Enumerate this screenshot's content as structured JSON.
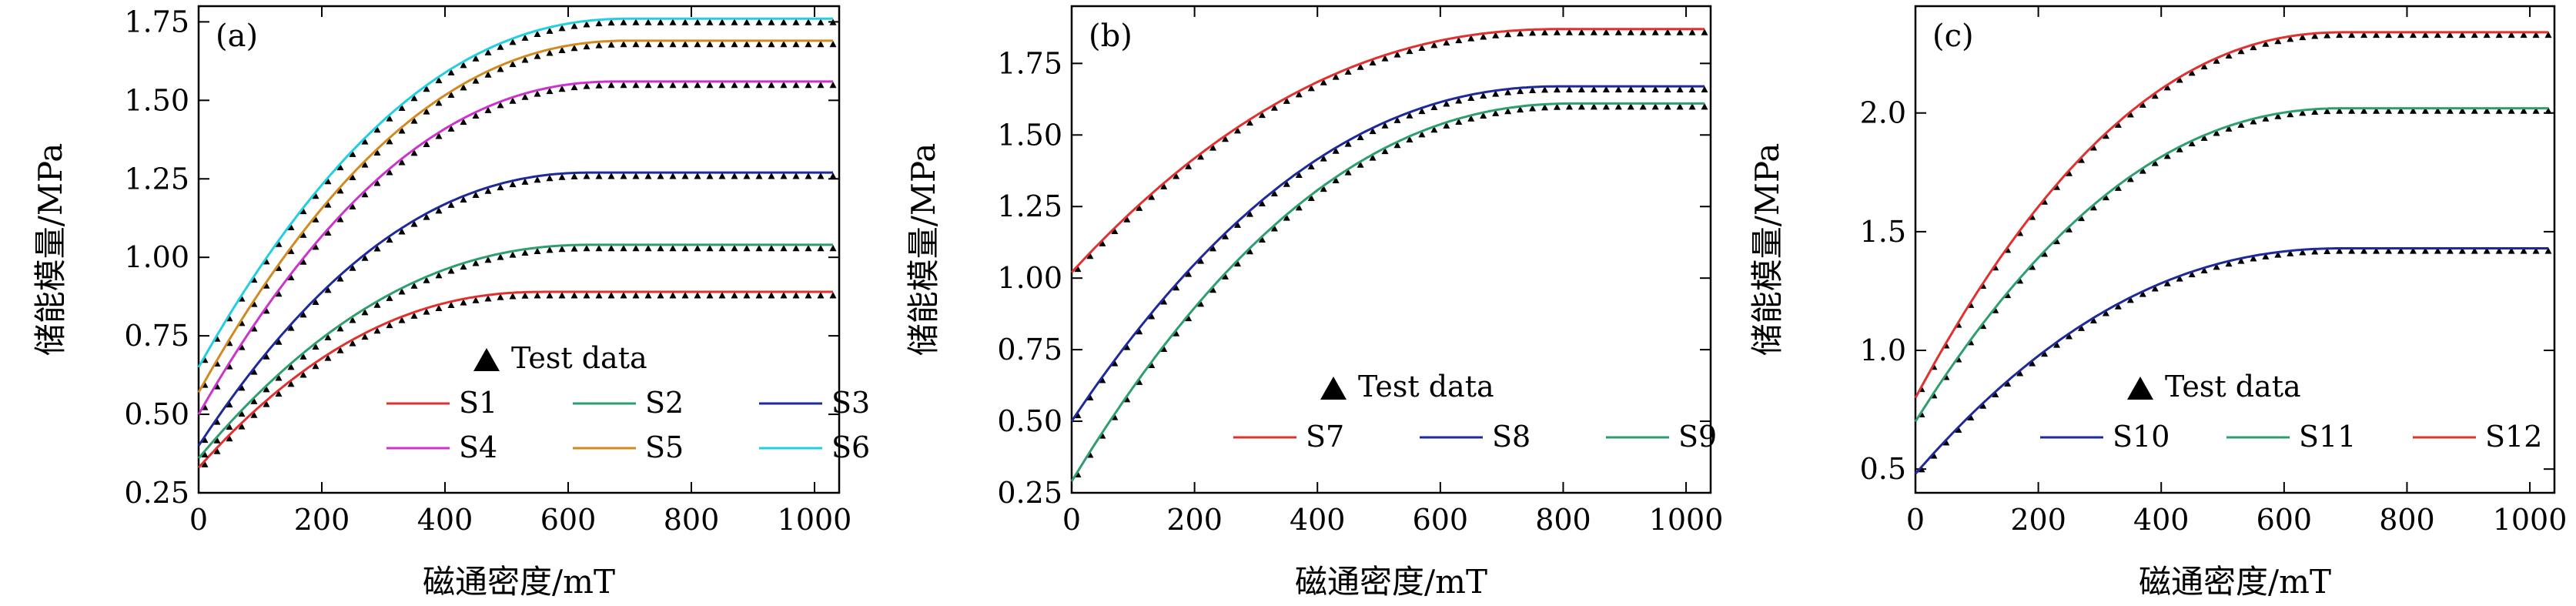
{
  "chart_data": [
    {
      "type": "line",
      "panel_label": "(a)",
      "xlabel": "磁通密度/mT",
      "ylabel": "储能模量/MPa",
      "xlim": [
        0,
        1040
      ],
      "ylim": [
        0.25,
        1.8
      ],
      "xticks": [
        0,
        200,
        400,
        600,
        800,
        1000
      ],
      "xtick_labels": [
        "0",
        "200",
        "400",
        "600",
        "800",
        "1000"
      ],
      "yticks": [
        0.25,
        0.5,
        0.75,
        1.0,
        1.25,
        1.5,
        1.75
      ],
      "ytick_labels": [
        "0.25",
        "0.50",
        "0.75",
        "1.00",
        "1.25",
        "1.50",
        "1.75"
      ],
      "test_data_label": "Test data",
      "legend_rows": [
        [
          "S1",
          "S2",
          "S3"
        ],
        [
          "S4",
          "S5",
          "S6"
        ]
      ],
      "series": [
        {
          "name": "S1",
          "color": "#e03030",
          "start": 0.33,
          "end": 0.89,
          "knee": 300,
          "sat": 560
        },
        {
          "name": "S2",
          "color": "#2e9e6e",
          "start": 0.36,
          "end": 1.04,
          "knee": 300,
          "sat": 640
        },
        {
          "name": "S3",
          "color": "#1f2a9a",
          "start": 0.4,
          "end": 1.27,
          "knee": 300,
          "sat": 640
        },
        {
          "name": "S4",
          "color": "#cc33cc",
          "start": 0.5,
          "end": 1.56,
          "knee": 300,
          "sat": 680
        },
        {
          "name": "S5",
          "color": "#d08a20",
          "start": 0.57,
          "end": 1.69,
          "knee": 300,
          "sat": 700
        },
        {
          "name": "S6",
          "color": "#22cfe0",
          "start": 0.65,
          "end": 1.76,
          "knee": 300,
          "sat": 700
        }
      ]
    },
    {
      "type": "line",
      "panel_label": "(b)",
      "xlabel": "磁通密度/mT",
      "ylabel": "储能模量/MPa",
      "xlim": [
        0,
        1040
      ],
      "ylim": [
        0.25,
        1.95
      ],
      "xticks": [
        0,
        200,
        400,
        600,
        800,
        1000
      ],
      "xtick_labels": [
        "0",
        "200",
        "400",
        "600",
        "800",
        "1000"
      ],
      "yticks": [
        0.25,
        0.5,
        0.75,
        1.0,
        1.25,
        1.5,
        1.75
      ],
      "ytick_labels": [
        "0.25",
        "0.50",
        "0.75",
        "1.00",
        "1.25",
        "1.50",
        "1.75"
      ],
      "test_data_label": "Test data",
      "legend_rows": [
        [
          "S7",
          "S8",
          "S9"
        ]
      ],
      "series": [
        {
          "name": "S7",
          "color": "#e03030",
          "start": 1.02,
          "end": 1.87,
          "knee": 300,
          "sat": 800
        },
        {
          "name": "S8",
          "color": "#1f2a9a",
          "start": 0.5,
          "end": 1.67,
          "knee": 300,
          "sat": 800
        },
        {
          "name": "S9",
          "color": "#2e9e6e",
          "start": 0.29,
          "end": 1.61,
          "knee": 300,
          "sat": 820
        }
      ]
    },
    {
      "type": "line",
      "panel_label": "(c)",
      "xlabel": "磁通密度/mT",
      "ylabel": "储能模量/MPa",
      "xlim": [
        0,
        1040
      ],
      "ylim": [
        0.4,
        2.45
      ],
      "xticks": [
        0,
        200,
        400,
        600,
        800,
        1000
      ],
      "xtick_labels": [
        "0",
        "200",
        "400",
        "600",
        "800",
        "1000"
      ],
      "yticks": [
        0.5,
        1.0,
        1.5,
        2.0
      ],
      "ytick_labels": [
        "0.5",
        "1.0",
        "1.5",
        "2.0"
      ],
      "test_data_label": "Test data",
      "legend_rows": [
        [
          "S10",
          "S11",
          "S12"
        ]
      ],
      "series": [
        {
          "name": "S10",
          "color": "#1f2a9a",
          "start": 0.48,
          "end": 1.43,
          "knee": 300,
          "sat": 700
        },
        {
          "name": "S11",
          "color": "#2e9e6e",
          "start": 0.7,
          "end": 2.02,
          "knee": 300,
          "sat": 700
        },
        {
          "name": "S12",
          "color": "#e03030",
          "start": 0.8,
          "end": 2.34,
          "knee": 300,
          "sat": 700
        }
      ]
    }
  ]
}
